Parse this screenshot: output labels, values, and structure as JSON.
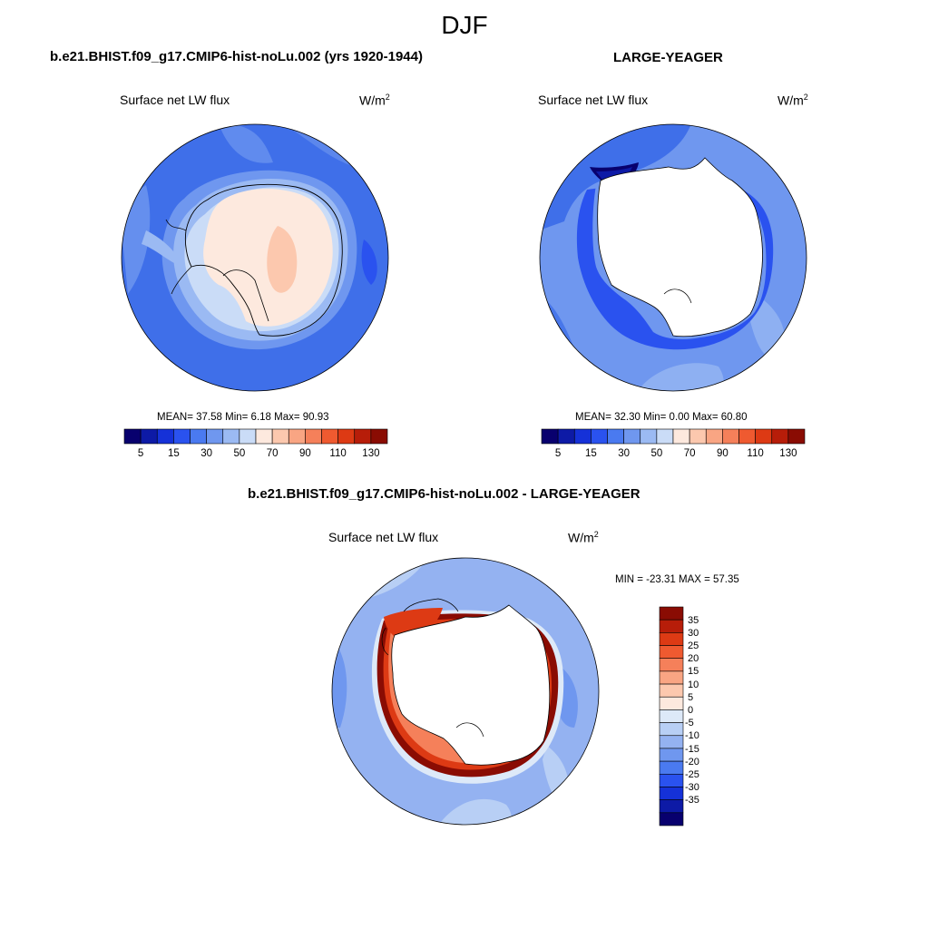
{
  "figure_title": "DJF",
  "panels": {
    "model": {
      "title": "b.e21.BHIST.f09_g17.CMIP6-hist-noLu.002 (yrs 1920-1944)",
      "variable": "Surface net LW flux",
      "units_base": "W/m",
      "units_exp": "2",
      "stats": "MEAN=  37.58  Min=   6.18  Max=  90.93"
    },
    "obs": {
      "title": "LARGE-YEAGER",
      "variable": "Surface net LW flux",
      "units_base": "W/m",
      "units_exp": "2",
      "stats": "MEAN=  32.30  Min=   0.00  Max=  60.80"
    },
    "diff": {
      "title": "b.e21.BHIST.f09_g17.CMIP6-hist-noLu.002 - LARGE-YEAGER",
      "variable": "Surface net LW flux",
      "units_base": "W/m",
      "units_exp": "2",
      "stats": "MIN = -23.31 MAX =  57.35"
    }
  },
  "abs_colorbar": {
    "labels": [
      "5",
      "15",
      "30",
      "50",
      "70",
      "90",
      "110",
      "130"
    ],
    "colors": [
      "#08006e",
      "#0d1aa6",
      "#1531d8",
      "#2a52ef",
      "#4a7af0",
      "#6f97ef",
      "#9bbaf3",
      "#cadcf7",
      "#fde9de",
      "#fcc8ae",
      "#f9a583",
      "#f5805a",
      "#ef5a30",
      "#dd3a14",
      "#b71d09",
      "#8a0c03"
    ]
  },
  "diff_colorbar": {
    "labels": [
      "35",
      "30",
      "25",
      "20",
      "15",
      "10",
      "5",
      "0",
      "-5",
      "-10",
      "-15",
      "-20",
      "-25",
      "-30",
      "-35"
    ],
    "colors": [
      "#8a0c03",
      "#b71d09",
      "#dd3a14",
      "#ef5a30",
      "#f5805a",
      "#f9a583",
      "#fcc8ae",
      "#fde9de",
      "#dde9f8",
      "#b8cff5",
      "#94b2f1",
      "#6f97ef",
      "#4a7af0",
      "#2a52ef",
      "#1531d8",
      "#0d1aa6",
      "#08006e"
    ]
  }
}
